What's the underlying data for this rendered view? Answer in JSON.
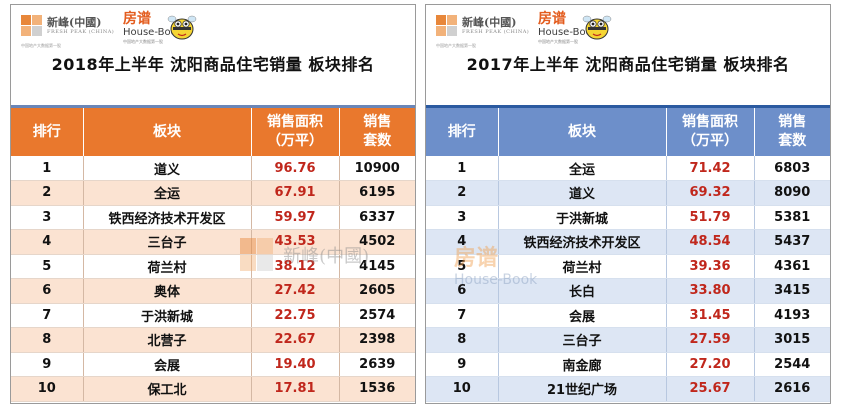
{
  "left": {
    "logo": {
      "company_cn": "新峰(中國)",
      "company_en": "FRESH PEAK (CHINA)",
      "company_sub": "中国地产大数据第一股",
      "fang": "房谱",
      "housebook": "House-Book",
      "housebook_sub": "中国地产大数据第一股"
    },
    "title": "2018年上半年 沈阳商品住宅销量  板块排名",
    "headers": {
      "rank": "排行",
      "district": "板块",
      "area_l1": "销售面积",
      "area_l2": "（万平）",
      "units_l1": "销售",
      "units_l2": "套数"
    },
    "rows": [
      {
        "rank": "1",
        "district": "道义",
        "area": "96.76",
        "units": "10900"
      },
      {
        "rank": "2",
        "district": "全运",
        "area": "67.91",
        "units": "6195"
      },
      {
        "rank": "3",
        "district": "铁西经济技术开发区",
        "area": "59.97",
        "units": "6337"
      },
      {
        "rank": "4",
        "district": "三台子",
        "area": "43.53",
        "units": "4502"
      },
      {
        "rank": "5",
        "district": "荷兰村",
        "area": "38.12",
        "units": "4145"
      },
      {
        "rank": "6",
        "district": "奥体",
        "area": "27.42",
        "units": "2605"
      },
      {
        "rank": "7",
        "district": "于洪新城",
        "area": "22.75",
        "units": "2574"
      },
      {
        "rank": "8",
        "district": "北营子",
        "area": "22.67",
        "units": "2398"
      },
      {
        "rank": "9",
        "district": "会展",
        "area": "19.40",
        "units": "2639"
      },
      {
        "rank": "10",
        "district": "保工北",
        "area": "17.81",
        "units": "1536"
      }
    ]
  },
  "right": {
    "logo": {
      "company_cn": "新峰(中國)",
      "company_en": "FRESH PEAK (CHINA)",
      "company_sub": "中国地产大数据第一股",
      "fang": "房谱",
      "housebook": "House-Book",
      "housebook_sub": "中国地产大数据第一股"
    },
    "title": "2017年上半年 沈阳商品住宅销量  板块排名",
    "headers": {
      "rank": "排行",
      "district": "板块",
      "area_l1": "销售面积",
      "area_l2": "（万平）",
      "units_l1": "销售",
      "units_l2": "套数"
    },
    "rows": [
      {
        "rank": "1",
        "district": "全运",
        "area": "71.42",
        "units": "6803"
      },
      {
        "rank": "2",
        "district": "道义",
        "area": "69.32",
        "units": "8090"
      },
      {
        "rank": "3",
        "district": "于洪新城",
        "area": "51.79",
        "units": "5381"
      },
      {
        "rank": "4",
        "district": "铁西经济技术开发区",
        "area": "48.54",
        "units": "5437"
      },
      {
        "rank": "5",
        "district": "荷兰村",
        "area": "39.36",
        "units": "4361"
      },
      {
        "rank": "6",
        "district": "长白",
        "area": "33.80",
        "units": "3415"
      },
      {
        "rank": "7",
        "district": "会展",
        "area": "31.45",
        "units": "4193"
      },
      {
        "rank": "8",
        "district": "三台子",
        "area": "27.59",
        "units": "3015"
      },
      {
        "rank": "9",
        "district": "南金廊",
        "area": "27.20",
        "units": "2544"
      },
      {
        "rank": "10",
        "district": "21世纪广场",
        "area": "25.67",
        "units": "2616"
      }
    ]
  },
  "watermark": {
    "company_cn": "新峰(中國)",
    "fang": "房谱",
    "housebook": "House-Book"
  },
  "colors": {
    "left_header": "#e9782d",
    "left_stripe": "#fbe3d2",
    "right_header": "#6d8fca",
    "right_stripe": "#dde6f4",
    "area_value": "#c0271c"
  }
}
